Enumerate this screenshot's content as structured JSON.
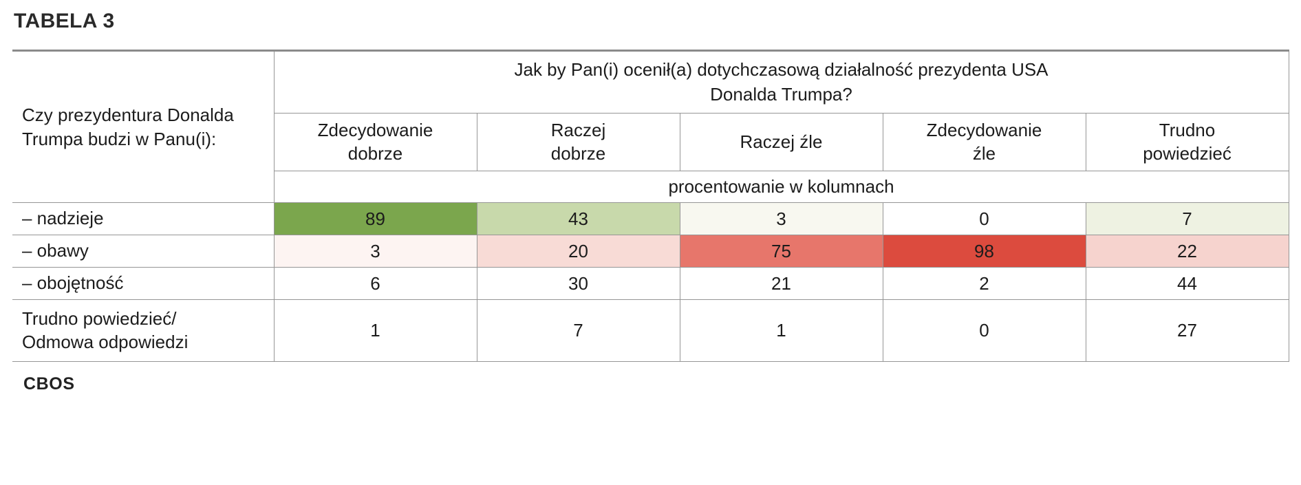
{
  "page": {
    "title": "TABELA 3",
    "source": "CBOS"
  },
  "table": {
    "row_axis_header": "Czy prezydentura Donalda Trumpa budzi w Panu(i):",
    "column_group_header": "Jak by Pan(i) ocenił(a) dotychczasową działalność prezydenta USA\nDonalda Trumpa?",
    "columns": [
      "Zdecydowanie\ndobrze",
      "Raczej\ndobrze",
      "Raczej źle",
      "Zdecydowanie\nźle",
      "Trudno\npowiedzieć"
    ],
    "percent_note": "procentowanie w kolumnach",
    "rows": [
      {
        "label": "– nadzieje",
        "values": [
          89,
          43,
          3,
          0,
          7
        ],
        "colors": [
          "#7ba64d",
          "#c8d9ab",
          "#f8f8f0",
          "#ffffff",
          "#eef2e2"
        ]
      },
      {
        "label": "– obawy",
        "values": [
          3,
          20,
          75,
          98,
          22
        ],
        "colors": [
          "#fdf4f2",
          "#f8dbd6",
          "#e7766b",
          "#dc4b3e",
          "#f6d3ce"
        ]
      },
      {
        "label": "– obojętność",
        "values": [
          6,
          30,
          21,
          2,
          44
        ],
        "colors": [
          "#ffffff",
          "#ffffff",
          "#ffffff",
          "#ffffff",
          "#ffffff"
        ]
      },
      {
        "label": "Trudno powiedzieć/\nOdmowa odpowiedzi",
        "values": [
          1,
          7,
          1,
          0,
          27
        ],
        "colors": [
          "#ffffff",
          "#ffffff",
          "#ffffff",
          "#ffffff",
          "#ffffff"
        ]
      }
    ]
  },
  "chart_data": {
    "type": "table",
    "title": "TABELA 3",
    "row_header": "Czy prezydentura Donalda Trumpa budzi w Panu(i):",
    "column_header": "Jak by Pan(i) ocenił(a) dotychczasową działalność prezydenta USA Donalda Trumpa?",
    "columns": [
      "Zdecydowanie dobrze",
      "Raczej dobrze",
      "Raczej źle",
      "Zdecydowanie źle",
      "Trudno powiedzieć"
    ],
    "unit": "procentowanie w kolumnach",
    "rows": [
      {
        "label": "– nadzieje",
        "values": [
          89,
          43,
          3,
          0,
          7
        ]
      },
      {
        "label": "– obawy",
        "values": [
          3,
          20,
          75,
          98,
          22
        ]
      },
      {
        "label": "– obojętność",
        "values": [
          6,
          30,
          21,
          2,
          44
        ]
      },
      {
        "label": "Trudno powiedzieć/ Odmowa odpowiedzi",
        "values": [
          1,
          7,
          1,
          0,
          27
        ]
      }
    ],
    "source": "CBOS",
    "notes": "Cells shaded green for high positive association, red for high negative association (heatmap-style shading)."
  }
}
